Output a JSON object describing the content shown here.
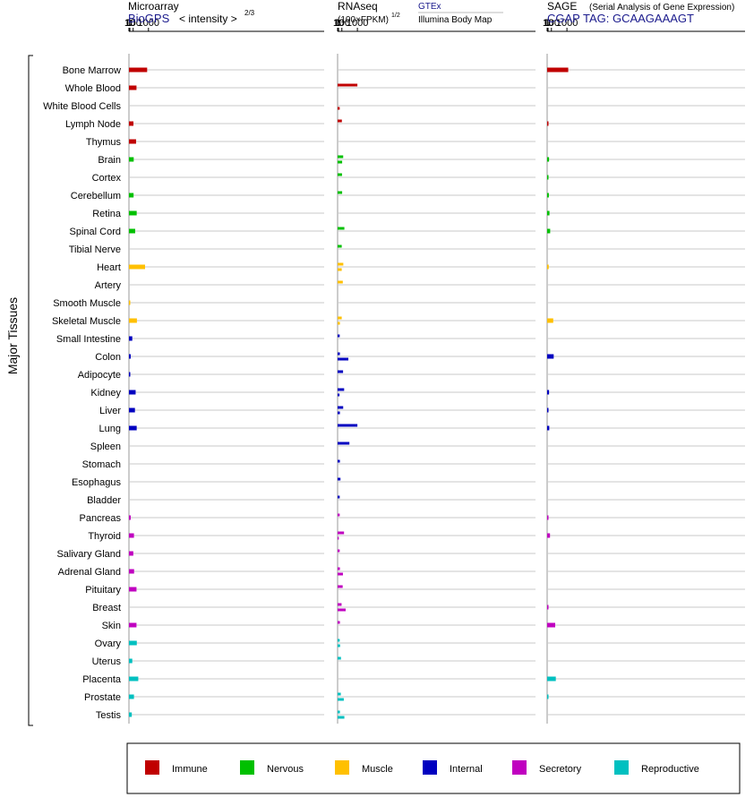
{
  "tissue_group_label": "Major Tissues",
  "tissues": [
    "Bone Marrow",
    "Whole Blood",
    "White Blood Cells",
    "Lymph Node",
    "Thymus",
    "Brain",
    "Cortex",
    "Cerebellum",
    "Retina",
    "Spinal Cord",
    "Tibial Nerve",
    "Heart",
    "Artery",
    "Smooth Muscle",
    "Skeletal Muscle",
    "Small Intestine",
    "Colon",
    "Adipocyte",
    "Kidney",
    "Liver",
    "Lung",
    "Spleen",
    "Stomach",
    "Esophagus",
    "Bladder",
    "Pancreas",
    "Thyroid",
    "Salivary Gland",
    "Adrenal Gland",
    "Pituitary",
    "Breast",
    "Skin",
    "Ovary",
    "Uterus",
    "Placenta",
    "Prostate",
    "Testis"
  ],
  "tissue_category": [
    "immune",
    "immune",
    "immune",
    "immune",
    "immune",
    "nervous",
    "nervous",
    "nervous",
    "nervous",
    "nervous",
    "nervous",
    "muscle",
    "muscle",
    "muscle",
    "muscle",
    "internal",
    "internal",
    "internal",
    "internal",
    "internal",
    "internal",
    "internal",
    "internal",
    "internal",
    "internal",
    "secretory",
    "secretory",
    "secretory",
    "secretory",
    "secretory",
    "secretory",
    "secretory",
    "reproductive",
    "reproductive",
    "reproductive",
    "reproductive",
    "reproductive"
  ],
  "colors": {
    "immune": "#c00000",
    "nervous": "#00c000",
    "muscle": "#ffc000",
    "internal": "#0000c0",
    "secretory": "#c000c0",
    "reproductive": "#00c0c0"
  },
  "legend": [
    {
      "key": "immune",
      "label": "Immune"
    },
    {
      "key": "nervous",
      "label": "Nervous"
    },
    {
      "key": "muscle",
      "label": "Muscle"
    },
    {
      "key": "internal",
      "label": "Internal"
    },
    {
      "key": "secretory",
      "label": "Secretory"
    },
    {
      "key": "reproductive",
      "label": "Reproductive"
    }
  ],
  "chart_data": [
    {
      "type": "bar",
      "panel": "microarray",
      "title": "Microarray",
      "source_label": "BioGPS",
      "scale_label": "< intensity >",
      "scale_exponent": "2/3",
      "axis_ticks": [
        "0",
        "1",
        "10",
        "100",
        "1000"
      ],
      "xlim": [
        0,
        1000
      ],
      "values": [
        900,
        240,
        null,
        110,
        220,
        120,
        null,
        115,
        250,
        180,
        null,
        750,
        null,
        5,
        260,
        70,
        28,
        6,
        200,
        170,
        250,
        null,
        null,
        null,
        null,
        28,
        130,
        105,
        135,
        240,
        null,
        240,
        255,
        70,
        330,
        130,
        55
      ]
    },
    {
      "type": "bar",
      "panel": "rnaseq",
      "title": "RNAseq",
      "scale_label": "(100×FPKM)",
      "scale_exponent": "1/2",
      "source_label": "GTEx",
      "source_label_2": "Illumina Body Map",
      "axis_ticks": [
        "0",
        "1",
        "10",
        "100",
        "1000"
      ],
      "xlim": [
        0,
        1000
      ],
      "series": [
        {
          "name": "GTEx",
          "values": [
            null,
            1000,
            null,
            100,
            null,
            150,
            105,
            110,
            null,
            200,
            95,
            155,
            135,
            null,
            95,
            35,
            40,
            145,
            190,
            150,
            1000,
            460,
            40,
            55,
            35,
            35,
            185,
            35,
            40,
            130,
            90,
            40,
            35,
            70,
            null,
            65,
            40
          ]
        },
        {
          "name": "Illumina Body Map",
          "values": [
            null,
            null,
            35,
            null,
            null,
            110,
            null,
            null,
            null,
            null,
            null,
            95,
            null,
            null,
            40,
            null,
            400,
            null,
            30,
            40,
            null,
            null,
            null,
            null,
            null,
            null,
            15,
            null,
            140,
            null,
            260,
            null,
            45,
            null,
            null,
            175,
            200
          ]
        }
      ]
    },
    {
      "type": "bar",
      "panel": "sage",
      "title": "SAGE",
      "subtitle": "(Serial Analysis of Gene Expression)",
      "source_label": "CGAP  TAG: GCAAGAAAGT",
      "axis_ticks": [
        "0",
        "1",
        "10",
        "100",
        "1000"
      ],
      "xlim": [
        0,
        1000
      ],
      "values": [
        1100,
        null,
        null,
        3,
        null,
        30,
        10,
        25,
        40,
        60,
        null,
        22,
        null,
        null,
        170,
        null,
        190,
        null,
        30,
        0.05,
        35,
        null,
        null,
        null,
        null,
        4,
        55,
        null,
        null,
        null,
        3,
        260,
        null,
        null,
        290,
        3,
        null
      ]
    }
  ]
}
